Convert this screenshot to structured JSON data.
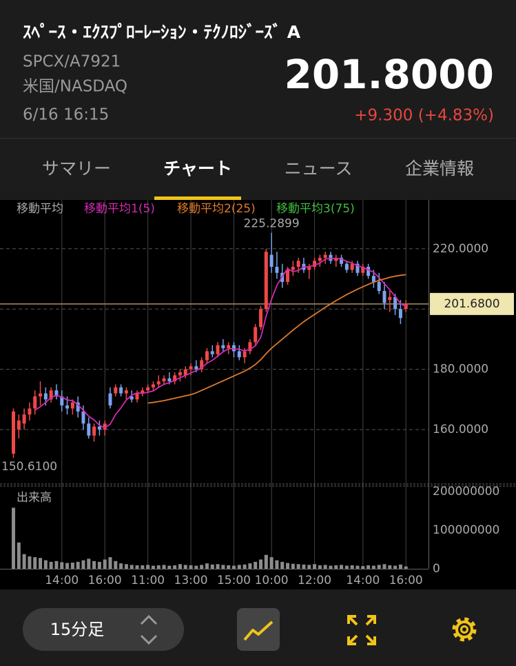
{
  "header": {
    "title": "ｽﾍﾟｰｽ・ｴｸｽﾌﾟﾛｰﾚｰｼｮﾝ・ﾃｸﾉﾛｼﾞｰｽﾞ A",
    "code": "SPCX/A7921",
    "market": "米国/NASDAQ",
    "datetime": "6/16 16:15",
    "price": "201.8000",
    "change": "+9.300 (+4.83%)"
  },
  "tabs": [
    "サマリー",
    "チャート",
    "ニュース",
    "企業情報"
  ],
  "toolbar": {
    "interval": "15分足"
  },
  "chart_data": {
    "type": "candlestick",
    "legend_title": "移動平均",
    "high_label": "225.2899",
    "low_label": "150.6100",
    "last_price": {
      "value": 201.68,
      "label": "201.6800"
    },
    "ylim": [
      142.4,
      236.2
    ],
    "yticks": [
      {
        "value": 160,
        "label": "160.0000"
      },
      {
        "value": 180,
        "label": "180.0000"
      },
      {
        "value": 220,
        "label": "220.0000"
      }
    ],
    "ygrid": [
      160,
      180,
      200,
      220
    ],
    "xlim": [
      -2.5,
      77.2
    ],
    "xticks": [
      {
        "value": 9,
        "label": "14:00"
      },
      {
        "value": 17,
        "label": "16:00"
      },
      {
        "value": 25,
        "label": "11:00"
      },
      {
        "value": 33,
        "label": "13:00"
      },
      {
        "value": 41,
        "label": "15:00"
      },
      {
        "value": 48,
        "label": "10:00"
      },
      {
        "value": 56,
        "label": "12:00"
      },
      {
        "value": 65,
        "label": "14:00"
      },
      {
        "value": 73,
        "label": "16:00"
      }
    ],
    "up_color": "#f04848",
    "down_color": "#7aa2ee",
    "candles": [
      [
        152,
        167,
        150.61,
        166
      ],
      [
        160,
        165,
        157,
        163
      ],
      [
        162,
        167,
        160,
        165
      ],
      [
        165,
        169,
        163,
        167
      ],
      [
        167,
        173,
        165,
        171
      ],
      [
        171,
        176,
        168,
        172
      ],
      [
        172,
        174,
        168,
        170
      ],
      [
        170,
        174,
        169,
        173
      ],
      [
        173,
        175,
        170,
        171
      ],
      [
        171,
        173,
        166,
        168
      ],
      [
        168,
        171,
        165,
        167
      ],
      [
        167,
        170,
        165,
        169
      ],
      [
        169,
        171,
        164,
        166
      ],
      [
        166,
        168,
        160,
        162
      ],
      [
        162,
        164,
        157,
        158
      ],
      [
        158,
        162,
        156,
        161
      ],
      [
        161,
        163,
        158,
        160
      ],
      [
        160,
        163,
        158,
        162
      ],
      [
        172,
        174,
        167,
        168
      ],
      [
        172,
        175,
        171,
        174
      ],
      [
        174,
        175,
        171,
        172
      ],
      [
        172,
        174,
        170,
        173
      ],
      [
        171,
        173,
        169,
        170
      ],
      [
        170,
        173,
        169,
        172
      ],
      [
        172,
        174,
        171,
        173
      ],
      [
        173,
        175,
        172,
        174
      ],
      [
        174,
        176,
        173,
        175
      ],
      [
        175,
        178,
        174,
        176
      ],
      [
        176,
        178,
        175,
        177
      ],
      [
        177,
        179,
        175,
        176
      ],
      [
        176,
        179,
        175,
        178
      ],
      [
        178,
        180,
        176,
        179
      ],
      [
        178,
        181,
        177,
        180
      ],
      [
        180,
        182,
        178,
        181
      ],
      [
        181,
        183,
        179,
        180
      ],
      [
        180,
        184,
        179,
        183
      ],
      [
        183,
        187,
        182,
        186
      ],
      [
        186,
        188,
        184,
        185
      ],
      [
        185,
        189,
        184,
        188
      ],
      [
        188,
        190,
        186,
        187
      ],
      [
        187,
        189,
        185,
        188
      ],
      [
        188,
        189,
        184,
        186
      ],
      [
        186,
        188,
        183,
        184
      ],
      [
        184,
        187,
        182,
        186
      ],
      [
        186,
        190,
        185,
        189
      ],
      [
        189,
        195,
        188,
        194
      ],
      [
        194,
        201,
        193,
        200
      ],
      [
        200,
        220,
        199,
        219
      ],
      [
        218,
        225.2899,
        212,
        214
      ],
      [
        214,
        219,
        210,
        212
      ],
      [
        212,
        215,
        207,
        209
      ],
      [
        209,
        214,
        208,
        213
      ],
      [
        213,
        216,
        211,
        214
      ],
      [
        214,
        217,
        212,
        216
      ],
      [
        215,
        217,
        212,
        213
      ],
      [
        213,
        215,
        210,
        214
      ],
      [
        214,
        217,
        213,
        216
      ],
      [
        216,
        218,
        214,
        217
      ],
      [
        217,
        219,
        215,
        218
      ],
      [
        218,
        219,
        215,
        216
      ],
      [
        216,
        218,
        214,
        217
      ],
      [
        217,
        218,
        214,
        215
      ],
      [
        215,
        216,
        212,
        213
      ],
      [
        213,
        216,
        212,
        215
      ],
      [
        215,
        216,
        211,
        212
      ],
      [
        212,
        215,
        211,
        214
      ],
      [
        214,
        215,
        210,
        211
      ],
      [
        211,
        213,
        207,
        209
      ],
      [
        209,
        212,
        205,
        206
      ],
      [
        206,
        209,
        200,
        202
      ],
      [
        203,
        206,
        199,
        204
      ],
      [
        204,
        205,
        198,
        200
      ],
      [
        200,
        203,
        195,
        197
      ],
      [
        200,
        203,
        199,
        201.68
      ]
    ],
    "series": [
      {
        "name": "移動平均1(5)",
        "color": "#d42ab4",
        "values": [
          null,
          null,
          null,
          null,
          166.4,
          167.6,
          169,
          170.6,
          171.4,
          170.8,
          169.8,
          169.6,
          168.2,
          166.4,
          164.4,
          163.2,
          161.4,
          160.6,
          161.8,
          165,
          167.2,
          169.8,
          171.4,
          172.2,
          172,
          172.4,
          172.8,
          174,
          175,
          175.6,
          176.4,
          177.2,
          178,
          178.8,
          179.6,
          180.6,
          182,
          183,
          184.4,
          185.8,
          186.8,
          186.8,
          186.6,
          186.2,
          186.6,
          187.8,
          190.6,
          197.6,
          203.2,
          207.8,
          210.8,
          213.4,
          212.4,
          212.8,
          214,
          214,
          214.6,
          215.2,
          216.6,
          216.8,
          216.8,
          216.6,
          215.8,
          215.2,
          214.4,
          213.8,
          213,
          212.2,
          210.4,
          208.4,
          206.4,
          204.2,
          201.8,
          200.9
        ]
      },
      {
        "name": "移動平均2(25)",
        "color": "#e07b2a",
        "values": [
          null,
          null,
          null,
          null,
          null,
          null,
          null,
          null,
          null,
          null,
          null,
          null,
          null,
          null,
          null,
          null,
          null,
          null,
          null,
          null,
          null,
          null,
          null,
          null,
          null,
          168.8,
          169,
          169.3,
          169.6,
          170,
          170.4,
          170.8,
          171.2,
          171.6,
          172.2,
          173,
          173.8,
          174.6,
          175.4,
          176.2,
          177,
          177.8,
          178.6,
          179.4,
          180.4,
          181.6,
          183.2,
          185.2,
          187,
          188.5,
          190,
          191.5,
          193,
          194.4,
          195.8,
          197,
          198.2,
          199.4,
          200.6,
          201.7,
          202.8,
          203.8,
          204.8,
          205.7,
          206.6,
          207.4,
          208.2,
          208.9,
          209.5,
          210,
          210.5,
          210.9,
          211.2,
          211.4
        ]
      },
      {
        "name": "移動平均3(75)",
        "color": "#3fbf3f"
      }
    ],
    "volume": {
      "label": "出来高",
      "color": "#8c8c8c",
      "ylim": [
        0,
        214000000
      ],
      "yticks": [
        0,
        100000000,
        200000000
      ],
      "values": [
        158000000,
        68000000,
        38000000,
        32000000,
        30000000,
        28000000,
        22000000,
        18000000,
        20000000,
        17000000,
        15000000,
        16000000,
        18000000,
        22000000,
        26000000,
        20000000,
        18000000,
        24000000,
        30000000,
        20000000,
        14000000,
        12000000,
        10000000,
        9000000,
        9000000,
        10000000,
        8000000,
        9000000,
        10000000,
        8000000,
        9000000,
        12000000,
        10000000,
        9000000,
        8000000,
        10000000,
        14000000,
        11000000,
        12000000,
        10000000,
        9000000,
        8000000,
        10000000,
        11000000,
        14000000,
        18000000,
        24000000,
        36000000,
        30000000,
        22000000,
        18000000,
        15000000,
        13000000,
        12000000,
        11000000,
        10000000,
        12000000,
        9000000,
        10000000,
        8000000,
        9000000,
        10000000,
        8000000,
        9000000,
        8000000,
        7000000,
        9000000,
        8000000,
        10000000,
        12000000,
        9000000,
        8000000,
        11000000,
        6000000
      ]
    }
  }
}
